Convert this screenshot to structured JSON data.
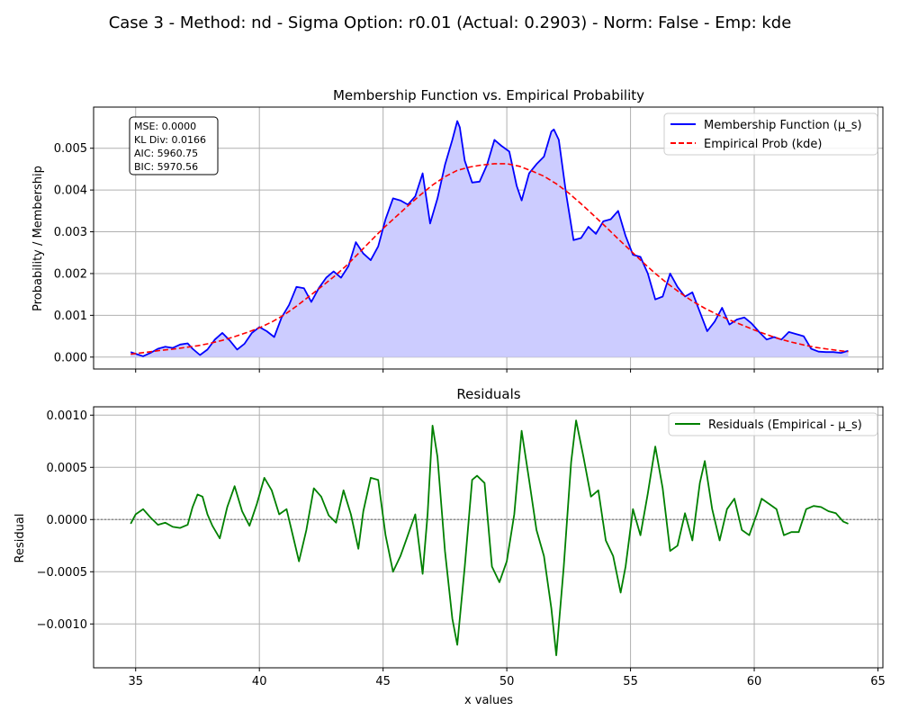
{
  "figure_title": "Case 3 - Method: nd - Sigma Option: r0.01 (Actual: 0.2903) - Norm: False - Emp: kde",
  "colors": {
    "membership": "#0000ff",
    "membership_fill": "#ccccff",
    "empirical": "#ff0000",
    "residual": "#008000",
    "grid": "#b0b0b0",
    "zero_line": "#808080"
  },
  "chart_data": [
    {
      "type": "line",
      "title": "Membership Function vs. Empirical Probability",
      "xlabel": "",
      "ylabel": "Probability / Membership",
      "xlim": [
        33.3,
        65.2
      ],
      "ylim": [
        -0.000285,
        0.005985
      ],
      "xticks": [
        35,
        40,
        45,
        50,
        55,
        60,
        65
      ],
      "yticks": [
        0.0,
        0.001,
        0.002,
        0.003,
        0.004,
        0.005
      ],
      "ytick_labels": [
        "0.000",
        "0.001",
        "0.002",
        "0.003",
        "0.004",
        "0.005"
      ],
      "grid": true,
      "legend_position": "upper right",
      "stats_box": [
        "MSE: 0.0000",
        "KL Div: 0.0166",
        "AIC: 5960.75",
        "BIC: 5970.56"
      ],
      "series": [
        {
          "name": "Membership Function (μ_s)",
          "style": "solid",
          "fill": true,
          "x": [
            34.8,
            35.0,
            35.3,
            35.6,
            35.9,
            36.2,
            36.5,
            36.8,
            37.1,
            37.3,
            37.6,
            37.9,
            38.2,
            38.5,
            38.8,
            39.1,
            39.4,
            39.7,
            40.0,
            40.3,
            40.6,
            40.9,
            41.2,
            41.5,
            41.8,
            42.1,
            42.4,
            42.7,
            43.0,
            43.3,
            43.6,
            43.9,
            44.2,
            44.5,
            44.8,
            45.1,
            45.4,
            45.7,
            46.0,
            46.3,
            46.6,
            46.9,
            47.2,
            47.5,
            47.8,
            48.0,
            48.1,
            48.3,
            48.6,
            48.9,
            49.2,
            49.5,
            49.8,
            50.1,
            50.4,
            50.6,
            50.9,
            51.2,
            51.5,
            51.8,
            51.9,
            52.1,
            52.4,
            52.7,
            53.0,
            53.3,
            53.6,
            53.9,
            54.2,
            54.5,
            54.8,
            55.1,
            55.4,
            55.7,
            56.0,
            56.3,
            56.6,
            56.9,
            57.2,
            57.5,
            57.8,
            58.1,
            58.4,
            58.7,
            59.0,
            59.3,
            59.6,
            59.9,
            60.2,
            60.5,
            60.8,
            61.1,
            61.4,
            61.7,
            62.0,
            62.3,
            62.6,
            62.9,
            63.2,
            63.5,
            63.8
          ],
          "y": [
            0.00012,
            8e-05,
            2e-05,
            0.0001,
            0.0002,
            0.00025,
            0.00022,
            0.0003,
            0.00033,
            0.0002,
            5e-05,
            0.00018,
            0.00042,
            0.00058,
            0.0004,
            0.00018,
            0.00032,
            0.00058,
            0.00072,
            0.00062,
            0.00048,
            0.00095,
            0.00125,
            0.00168,
            0.00165,
            0.00132,
            0.00165,
            0.0019,
            0.00205,
            0.0019,
            0.00218,
            0.00275,
            0.00248,
            0.00232,
            0.00265,
            0.0033,
            0.0038,
            0.00375,
            0.00365,
            0.00385,
            0.0044,
            0.0032,
            0.0038,
            0.0046,
            0.0052,
            0.00565,
            0.0055,
            0.0047,
            0.00418,
            0.0042,
            0.0046,
            0.0052,
            0.00505,
            0.00492,
            0.0041,
            0.00375,
            0.0044,
            0.00462,
            0.0048,
            0.0054,
            0.00545,
            0.0052,
            0.0039,
            0.0028,
            0.00285,
            0.00312,
            0.00295,
            0.00325,
            0.0033,
            0.0035,
            0.0029,
            0.00245,
            0.0024,
            0.002,
            0.00138,
            0.00145,
            0.002,
            0.00168,
            0.00145,
            0.00155,
            0.00108,
            0.00062,
            0.00085,
            0.00118,
            0.00078,
            0.0009,
            0.00095,
            0.0008,
            0.0006,
            0.00042,
            0.00048,
            0.00042,
            0.0006,
            0.00055,
            0.0005,
            0.0002,
            0.00013,
            0.00012,
            0.00012,
            0.0001,
            0.00015
          ],
          "color": "#0000ff"
        },
        {
          "name": "Empirical Prob (kde)",
          "style": "dashed",
          "fill": false,
          "x": [
            34.8,
            35.5,
            36.0,
            36.5,
            37.0,
            37.5,
            38.0,
            38.5,
            39.0,
            39.5,
            40.0,
            40.5,
            41.0,
            41.5,
            42.0,
            42.5,
            43.0,
            43.5,
            44.0,
            44.5,
            45.0,
            45.5,
            46.0,
            46.5,
            47.0,
            47.5,
            48.0,
            48.5,
            49.0,
            49.5,
            50.0,
            50.5,
            51.0,
            51.5,
            52.0,
            52.5,
            53.0,
            53.5,
            54.0,
            54.5,
            55.0,
            55.5,
            56.0,
            56.5,
            57.0,
            57.5,
            58.0,
            58.5,
            59.0,
            59.5,
            60.0,
            60.5,
            61.0,
            61.5,
            62.0,
            62.5,
            63.0,
            63.5,
            63.8
          ],
          "y": [
            7e-05,
            0.00012,
            0.00016,
            0.00019,
            0.00023,
            0.00027,
            0.00033,
            0.0004,
            0.00049,
            0.00059,
            0.0007,
            0.00084,
            0.00101,
            0.00122,
            0.00145,
            0.00168,
            0.00192,
            0.00218,
            0.00248,
            0.00278,
            0.00308,
            0.00335,
            0.00362,
            0.00388,
            0.00412,
            0.00432,
            0.00447,
            0.00455,
            0.0046,
            0.00463,
            0.00463,
            0.00457,
            0.00446,
            0.00433,
            0.00415,
            0.00393,
            0.00367,
            0.0034,
            0.00312,
            0.00283,
            0.00255,
            0.00227,
            0.002,
            0.00176,
            0.00154,
            0.00134,
            0.00117,
            0.00102,
            0.00089,
            0.00077,
            0.00065,
            0.00054,
            0.00044,
            0.00036,
            0.00029,
            0.00023,
            0.00019,
            0.00015,
            0.00013
          ],
          "color": "#ff0000"
        }
      ]
    },
    {
      "type": "line",
      "title": "Residuals",
      "xlabel": "x values",
      "ylabel": "Residual",
      "xlim": [
        33.3,
        65.2
      ],
      "ylim": [
        -0.00142,
        0.00108
      ],
      "xticks": [
        35,
        40,
        45,
        50,
        55,
        60,
        65
      ],
      "xtick_labels": [
        "35",
        "40",
        "45",
        "50",
        "55",
        "60",
        "65"
      ],
      "yticks": [
        -0.001,
        -0.0005,
        0.0,
        0.0005,
        0.001
      ],
      "ytick_labels": [
        "−0.0010",
        "−0.0005",
        "0.0000",
        "0.0005",
        "0.0010"
      ],
      "grid": true,
      "legend_position": "upper right",
      "series": [
        {
          "name": "Residuals (Empirical - μ_s)",
          "style": "solid",
          "color": "#008000",
          "x": [
            34.8,
            35.0,
            35.3,
            35.6,
            35.9,
            36.2,
            36.5,
            36.8,
            37.1,
            37.3,
            37.5,
            37.7,
            37.9,
            38.1,
            38.4,
            38.7,
            39.0,
            39.3,
            39.6,
            39.9,
            40.2,
            40.5,
            40.8,
            41.1,
            41.4,
            41.6,
            41.9,
            42.2,
            42.5,
            42.8,
            43.1,
            43.4,
            43.7,
            44.0,
            44.2,
            44.5,
            44.8,
            45.1,
            45.4,
            45.7,
            46.0,
            46.3,
            46.6,
            46.8,
            47.0,
            47.2,
            47.5,
            47.8,
            48.0,
            48.3,
            48.6,
            48.8,
            49.1,
            49.4,
            49.7,
            50.0,
            50.3,
            50.6,
            50.9,
            51.2,
            51.5,
            51.8,
            52.0,
            52.3,
            52.6,
            52.8,
            53.1,
            53.4,
            53.7,
            54.0,
            54.3,
            54.6,
            54.8,
            55.1,
            55.4,
            55.7,
            56.0,
            56.3,
            56.6,
            56.9,
            57.2,
            57.5,
            57.8,
            58.0,
            58.3,
            58.6,
            58.9,
            59.2,
            59.5,
            59.8,
            60.1,
            60.3,
            60.6,
            60.9,
            61.2,
            61.5,
            61.8,
            62.1,
            62.4,
            62.7,
            63.0,
            63.3,
            63.6,
            63.8
          ],
          "y": [
            -4e-05,
            5e-05,
            0.0001,
            2e-05,
            -5e-05,
            -3e-05,
            -7e-05,
            -8e-05,
            -5e-05,
            0.00012,
            0.00024,
            0.00022,
            5e-05,
            -6e-05,
            -0.00018,
            0.00012,
            0.00032,
            8e-05,
            -6e-05,
            0.00015,
            0.0004,
            0.00028,
            5e-05,
            0.0001,
            -0.0002,
            -0.0004,
            -0.0001,
            0.0003,
            0.00022,
            4e-05,
            -3e-05,
            0.00028,
            5e-05,
            -0.00028,
            8e-05,
            0.0004,
            0.00038,
            -0.00015,
            -0.0005,
            -0.00035,
            -0.00015,
            5e-05,
            -0.00052,
            5e-05,
            0.0009,
            0.0006,
            -0.0003,
            -0.00095,
            -0.0012,
            -0.00045,
            0.00038,
            0.00042,
            0.00035,
            -0.00045,
            -0.0006,
            -0.0004,
            5e-05,
            0.00085,
            0.00038,
            -0.0001,
            -0.00035,
            -0.00085,
            -0.0013,
            -0.00045,
            0.00055,
            0.00095,
            0.0006,
            0.00022,
            0.00028,
            -0.0002,
            -0.00035,
            -0.0007,
            -0.00045,
            0.0001,
            -0.00015,
            0.00025,
            0.0007,
            0.0003,
            -0.0003,
            -0.00025,
            6e-05,
            -0.0002,
            0.00035,
            0.00056,
            0.0001,
            -0.0002,
            0.0001,
            0.0002,
            -0.0001,
            -0.00015,
            5e-05,
            0.0002,
            0.00015,
            0.0001,
            -0.00015,
            -0.00012,
            -0.00012,
            0.0001,
            0.00013,
            0.00012,
            8e-05,
            6e-05,
            -2e-05,
            -4e-05
          ]
        }
      ]
    }
  ]
}
